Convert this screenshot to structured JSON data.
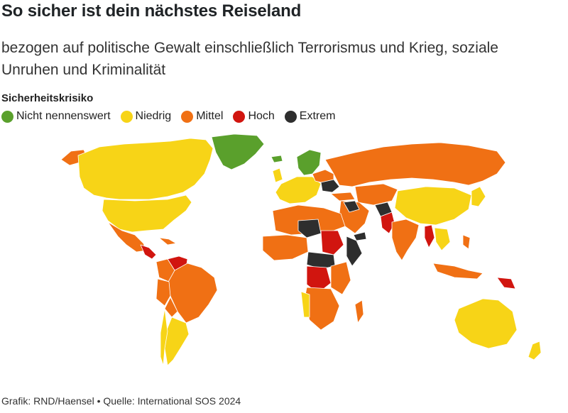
{
  "header": {
    "title": "So sicher ist dein nächstes Reiseland",
    "subtitle": "bezogen auf politische Gewalt einschließlich Terrorismus und Krieg, soziale Unruhen und Kriminalität"
  },
  "legend": {
    "title": "Sicherheitskrisiko",
    "items": [
      {
        "label": "Nicht nennenswert",
        "color": "#5aa02c"
      },
      {
        "label": "Niedrig",
        "color": "#f7d417"
      },
      {
        "label": "Mittel",
        "color": "#f07014"
      },
      {
        "label": "Hoch",
        "color": "#d1150f"
      },
      {
        "label": "Extrem",
        "color": "#2e2e2e"
      }
    ]
  },
  "footer": {
    "credit": "Grafik: RND/Haensel • Quelle: International SOS 2024"
  }
}
